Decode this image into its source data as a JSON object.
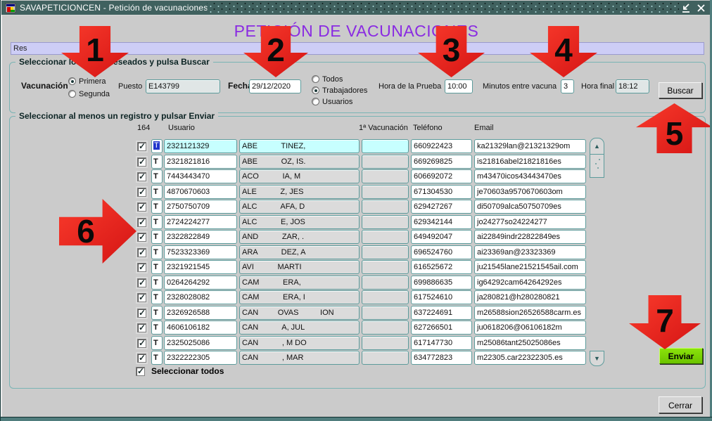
{
  "window": {
    "title": "SAVAPETICIONCEN - Petición de vacunaciones"
  },
  "page_title": "PETICIÓN DE VACUNACIONES",
  "message_bar": {
    "value": "Res"
  },
  "filter": {
    "legend": "Seleccionar los datos deseados y pulsa Buscar",
    "vacunacion_label": "Vacunación",
    "radio_primera": "Primera",
    "radio_segunda": "Segunda",
    "puesto_label": "Puesto",
    "puesto_value": "E143799",
    "fecha_label": "Fecha",
    "fecha_value": "29/12/2020",
    "radio_todos": "Todos",
    "radio_trabajadores": "Trabajadores",
    "radio_usuarios": "Usuarios",
    "hora_prueba_label": "Hora de la Prueba",
    "hora_prueba_value": "10:00",
    "minutos_label": "Minutos entre vacuna",
    "minutos_value": "3",
    "hora_final_label": "Hora final",
    "hora_final_value": "18:12",
    "buscar_label": "Buscar"
  },
  "results": {
    "legend": "Seleccionar al menos un registro y pulsar Enviar",
    "count_label": "164",
    "columns": {
      "usuario": "Usuario",
      "vacunacion": "1ª Vacunación",
      "telefono": "Teléfono",
      "email": "Email"
    },
    "select_all_label": "Seleccionar todos",
    "enviar_label": "Enviar",
    "rows": [
      {
        "selected": true,
        "checked": true,
        "tipo": "T",
        "usuario": "2321121329",
        "nombre": "ABE           TINEZ,",
        "vacunacion": "",
        "telefono": "660922423",
        "email": "ka21329lan@21321329om"
      },
      {
        "selected": false,
        "checked": true,
        "tipo": "T",
        "usuario": "2321821816",
        "nombre": "ABE           OZ, IS.",
        "vacunacion": "",
        "telefono": "669269825",
        "email": "is21816abel21821816es"
      },
      {
        "selected": false,
        "checked": true,
        "tipo": "T",
        "usuario": "7443443470",
        "nombre": "ACO           IA, M",
        "vacunacion": "",
        "telefono": "606692072",
        "email": "m43470icos43443470es"
      },
      {
        "selected": false,
        "checked": true,
        "tipo": "T",
        "usuario": "4870670603",
        "nombre": "ALE           Z, JES",
        "vacunacion": "",
        "telefono": "671304530",
        "email": "je70603a9570670603om"
      },
      {
        "selected": false,
        "checked": true,
        "tipo": "T",
        "usuario": "2750750709",
        "nombre": "ALC           AFA, D",
        "vacunacion": "",
        "telefono": "629427267",
        "email": "di50709alca50750709es"
      },
      {
        "selected": false,
        "checked": true,
        "tipo": "T",
        "usuario": "2724224277",
        "nombre": "ALC           E, JOS",
        "vacunacion": "",
        "telefono": "629342144",
        "email": "jo24277so24224277"
      },
      {
        "selected": false,
        "checked": true,
        "tipo": "T",
        "usuario": "2322822849",
        "nombre": "AND           ZAR, .",
        "vacunacion": "",
        "telefono": "649492047",
        "email": "ai22849indr22822849es"
      },
      {
        "selected": false,
        "checked": true,
        "tipo": "T",
        "usuario": "7523323369",
        "nombre": "ARA           DEZ, A",
        "vacunacion": "",
        "telefono": "696524760",
        "email": "ai23369an@23323369"
      },
      {
        "selected": false,
        "checked": true,
        "tipo": "T",
        "usuario": "2321921545",
        "nombre": "AVI           MARTI",
        "vacunacion": "",
        "telefono": "616525672",
        "email": "ju21545lane21521545ail.com"
      },
      {
        "selected": false,
        "checked": true,
        "tipo": "T",
        "usuario": "0264264292",
        "nombre": "CAM           ERA,",
        "vacunacion": "",
        "telefono": "699886635",
        "email": "ig64292cam64264292es"
      },
      {
        "selected": false,
        "checked": true,
        "tipo": "T",
        "usuario": "2328028082",
        "nombre": "CAM           ERA, I",
        "vacunacion": "",
        "telefono": "617524610",
        "email": "ja280821@h280280821"
      },
      {
        "selected": false,
        "checked": true,
        "tipo": "T",
        "usuario": "2326926588",
        "nombre": "CAN         OVAS          ION",
        "vacunacion": "",
        "telefono": "637224691",
        "email": "m26588sion26526588carm.es"
      },
      {
        "selected": false,
        "checked": true,
        "tipo": "T",
        "usuario": "4606106182",
        "nombre": "CAN           A, JUL",
        "vacunacion": "",
        "telefono": "627266501",
        "email": "ju0618206@06106182m"
      },
      {
        "selected": false,
        "checked": true,
        "tipo": "T",
        "usuario": "2325025086",
        "nombre": "CAN           , M DO",
        "vacunacion": "",
        "telefono": "617147730",
        "email": "m25086tant25025086es"
      },
      {
        "selected": false,
        "checked": true,
        "tipo": "T",
        "usuario": "2322222305",
        "nombre": "CAN           , MAR",
        "vacunacion": "",
        "telefono": "634772823",
        "email": "m22305.car22322305.es"
      }
    ],
    "select_all_checked": true
  },
  "footer": {
    "cerrar_label": "Cerrar"
  },
  "annotations": [
    {
      "number": "1",
      "direction": "down"
    },
    {
      "number": "2",
      "direction": "down"
    },
    {
      "number": "3",
      "direction": "down"
    },
    {
      "number": "4",
      "direction": "down"
    },
    {
      "number": "5",
      "direction": "up"
    },
    {
      "number": "6",
      "direction": "right"
    },
    {
      "number": "7",
      "direction": "down"
    }
  ],
  "colors": {
    "accent_purple": "#8a2be2",
    "annotation_red": "#e02318",
    "enviar_green": "#76d400",
    "selected_row_cyan": "#c7ffff",
    "message_bar_lavender": "#cdcdf6",
    "titlebar_teal": "#40615f"
  }
}
